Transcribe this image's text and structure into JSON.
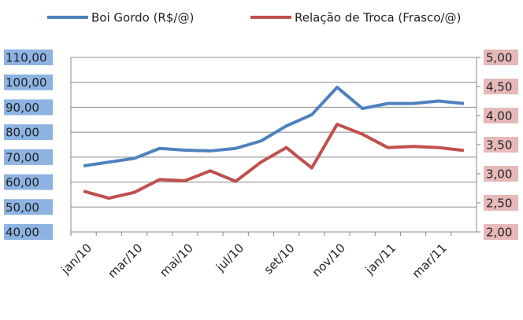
{
  "chart_data": {
    "type": "line",
    "categories": [
      "jan/10",
      null,
      "mar/10",
      null,
      "mai/10",
      null,
      "jul/10",
      null,
      "set/10",
      null,
      "nov/10",
      null,
      "jan/11",
      null,
      "mar/11",
      null
    ],
    "series": [
      {
        "name": "Boi Gordo (R$/@)",
        "color": "#4f81bd",
        "values": [
          66.5,
          68,
          69.5,
          73.5,
          72.8,
          72.5,
          73.5,
          76.5,
          82.5,
          87,
          98,
          89.5,
          91.5,
          91.5,
          92.5,
          91.5
        ]
      },
      {
        "name": "Relação de Troca (Frasco/@)",
        "color": "#c0504d",
        "axis": "y2",
        "values": [
          2.7,
          2.58,
          2.68,
          2.9,
          2.88,
          3.05,
          2.87,
          3.2,
          3.45,
          3.1,
          3.85,
          3.68,
          3.45,
          3.47,
          3.45,
          3.4
        ]
      }
    ],
    "ylim": [
      40,
      110
    ],
    "yticks": [
      {
        "value": 40,
        "label": "40,00"
      },
      {
        "value": 50,
        "label": "50,00"
      },
      {
        "value": 60,
        "label": "60,00"
      },
      {
        "value": 70,
        "label": "70,00"
      },
      {
        "value": 80,
        "label": "80,00"
      },
      {
        "value": 90,
        "label": "90,00"
      },
      {
        "value": 100,
        "label": "100,00"
      },
      {
        "value": 110,
        "label": "110,00"
      }
    ],
    "y2lim": [
      2,
      5
    ],
    "y2ticks": [
      {
        "value": 2,
        "label": "2,00"
      },
      {
        "value": 2.5,
        "label": "2,50"
      },
      {
        "value": 3,
        "label": "3,00"
      },
      {
        "value": 3.5,
        "label": "3,50"
      },
      {
        "value": 4,
        "label": "4,00"
      },
      {
        "value": 4.5,
        "label": "4,50"
      },
      {
        "value": 5,
        "label": "5,00"
      }
    ],
    "grid": true,
    "legend": "top"
  }
}
